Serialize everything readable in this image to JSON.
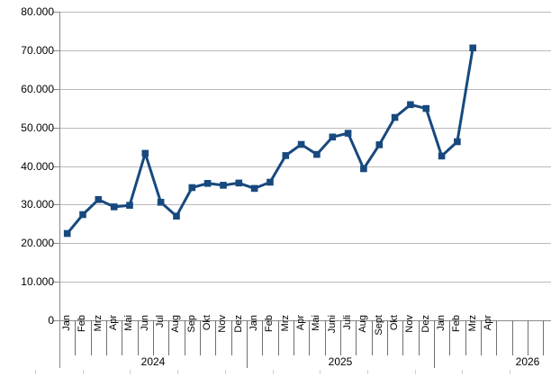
{
  "chart_data": {
    "type": "line",
    "title": "",
    "subtitle": "",
    "legend": false,
    "grid": true,
    "y_axis": {
      "min": 0,
      "max": 80000,
      "step": 10000,
      "tick_labels_top_down": [
        "80.000",
        "70.000",
        "60.000",
        "50.000",
        "40.000",
        "30.000",
        "20.000",
        "10.000",
        "0"
      ]
    },
    "x_axis": {
      "year_groups": [
        {
          "label": "2024",
          "months": [
            "Jan",
            "Feb",
            "Mrz",
            "Apr",
            "Mai",
            "Jun",
            "Jul",
            "Aug",
            "Sep",
            "Okt",
            "Nov",
            "Dez"
          ]
        },
        {
          "label": "2025",
          "months": [
            "Jan",
            "Feb",
            "Mrz",
            "Apr",
            "Mai",
            "Juni",
            "Juli",
            "Aug",
            "Sept",
            "Okt",
            "Nov",
            "Dez"
          ]
        },
        {
          "label": "2026",
          "months": [
            "Jan",
            "Feb",
            "Mrz",
            "Apr",
            "",
            "",
            "",
            "",
            "",
            "",
            "",
            ""
          ]
        }
      ]
    },
    "series": [
      {
        "name": "series-1",
        "color": "#17497E",
        "marker": "square",
        "values": [
          22500,
          27400,
          31300,
          29400,
          29800,
          43300,
          30600,
          27000,
          34400,
          35500,
          35000,
          35600,
          34200,
          35800,
          42700,
          45600,
          43000,
          47500,
          48500,
          39300,
          45500,
          52600,
          55900,
          54900,
          42600,
          46300,
          70600,
          null,
          null,
          null,
          null,
          null,
          null,
          null,
          null,
          null
        ]
      }
    ]
  },
  "colors": {
    "line": "#17497E",
    "gridline": "#B9B9B9",
    "axis": "#8A8A8A",
    "separator": "#707070",
    "text": "#000000",
    "background": "#FFFFFF",
    "sheet_border": "#CFCFCF"
  }
}
